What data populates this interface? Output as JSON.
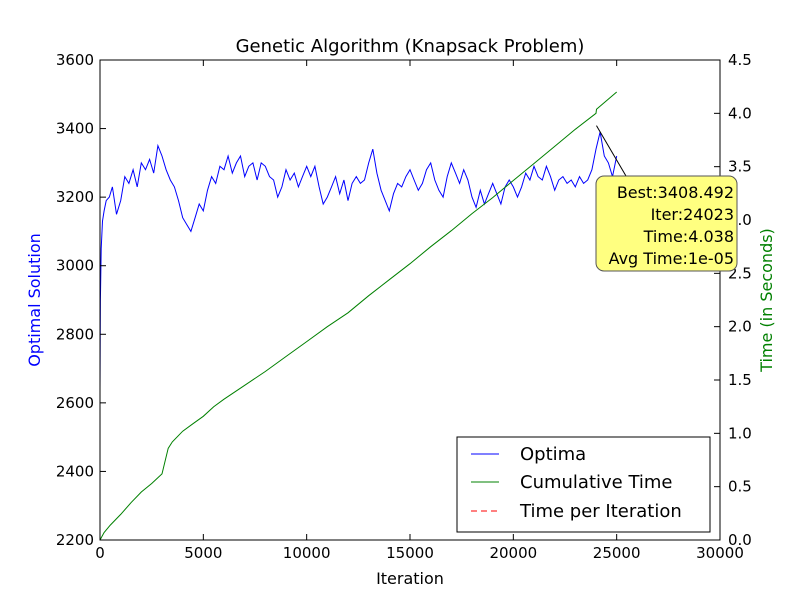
{
  "chart_data": {
    "type": "line",
    "title": "Genetic Algorithm (Knapsack Problem)",
    "xlabel": "Iteration",
    "ylabel_left": "Optimal Solution",
    "ylabel_right": "Time (in Seconds)",
    "xlim": [
      0,
      30000
    ],
    "ylim_left": [
      2200,
      3600
    ],
    "ylim_right": [
      0.0,
      4.5
    ],
    "x_ticks": [
      "0",
      "5000",
      "10000",
      "15000",
      "20000",
      "25000",
      "30000"
    ],
    "y_left_ticks": [
      "2200",
      "2400",
      "2600",
      "2800",
      "3000",
      "3200",
      "3400",
      "3600"
    ],
    "y_right_ticks": [
      "0.0",
      "0.5",
      "1.0",
      "1.5",
      "2.0",
      "2.5",
      "3.0",
      "3.5",
      "4.0",
      "4.5"
    ],
    "grid": false,
    "legend_position": "bottom-right",
    "series": [
      {
        "name": "Optima",
        "axis": "left",
        "color": "#0000ff",
        "style": "solid",
        "x": [
          0,
          20,
          60,
          120,
          200,
          300,
          450,
          600,
          800,
          1000,
          1200,
          1400,
          1600,
          1800,
          2000,
          2200,
          2400,
          2600,
          2800,
          3000,
          3200,
          3400,
          3600,
          3800,
          4000,
          4200,
          4400,
          4600,
          4800,
          5000,
          5200,
          5400,
          5600,
          5800,
          6000,
          6200,
          6400,
          6600,
          6800,
          7000,
          7200,
          7400,
          7600,
          7800,
          8000,
          8200,
          8400,
          8600,
          8800,
          9000,
          9200,
          9400,
          9600,
          9800,
          10000,
          10200,
          10400,
          10600,
          10800,
          11000,
          11200,
          11400,
          11600,
          11800,
          12000,
          12200,
          12400,
          12600,
          12800,
          13000,
          13200,
          13400,
          13600,
          13800,
          14000,
          14200,
          14400,
          14600,
          14800,
          15000,
          15200,
          15400,
          15600,
          15800,
          16000,
          16200,
          16400,
          16600,
          16800,
          17000,
          17200,
          17400,
          17600,
          17800,
          18000,
          18200,
          18400,
          18600,
          18800,
          19000,
          19200,
          19400,
          19600,
          19800,
          20000,
          20200,
          20400,
          20600,
          20800,
          21000,
          21200,
          21400,
          21600,
          21800,
          22000,
          22200,
          22400,
          22600,
          22800,
          23000,
          23200,
          23400,
          23600,
          23800,
          24000,
          24200,
          24400,
          24600,
          24800,
          25000
        ],
        "y": [
          2640,
          2900,
          3050,
          3130,
          3160,
          3190,
          3200,
          3230,
          3150,
          3190,
          3260,
          3240,
          3280,
          3230,
          3300,
          3280,
          3310,
          3270,
          3350,
          3320,
          3280,
          3250,
          3230,
          3190,
          3140,
          3120,
          3100,
          3140,
          3180,
          3160,
          3220,
          3260,
          3240,
          3290,
          3280,
          3320,
          3270,
          3300,
          3320,
          3260,
          3290,
          3300,
          3250,
          3300,
          3290,
          3260,
          3250,
          3200,
          3230,
          3280,
          3250,
          3270,
          3230,
          3260,
          3290,
          3260,
          3290,
          3230,
          3180,
          3200,
          3230,
          3260,
          3210,
          3250,
          3190,
          3240,
          3260,
          3240,
          3250,
          3300,
          3340,
          3270,
          3220,
          3190,
          3160,
          3210,
          3240,
          3230,
          3260,
          3280,
          3250,
          3220,
          3240,
          3280,
          3300,
          3250,
          3220,
          3200,
          3260,
          3300,
          3270,
          3240,
          3280,
          3250,
          3200,
          3170,
          3220,
          3180,
          3210,
          3240,
          3210,
          3180,
          3230,
          3250,
          3230,
          3200,
          3230,
          3270,
          3250,
          3290,
          3260,
          3250,
          3290,
          3260,
          3220,
          3250,
          3260,
          3240,
          3250,
          3230,
          3260,
          3240,
          3250,
          3280,
          3340,
          3390,
          3320,
          3300,
          3260,
          3320
        ]
      },
      {
        "name": "Cumulative Time",
        "axis": "right",
        "color": "#008000",
        "style": "solid",
        "x": [
          0,
          200,
          500,
          1000,
          1500,
          2000,
          2500,
          3000,
          3300,
          3500,
          4000,
          4500,
          5000,
          5500,
          6000,
          7000,
          8000,
          9000,
          10000,
          11000,
          12000,
          13000,
          14000,
          15000,
          16000,
          17000,
          18000,
          19000,
          20000,
          21000,
          22000,
          23000,
          24000,
          24023,
          25000
        ],
        "y": [
          0.0,
          0.07,
          0.14,
          0.24,
          0.35,
          0.45,
          0.53,
          0.62,
          0.86,
          0.92,
          1.02,
          1.09,
          1.16,
          1.25,
          1.32,
          1.45,
          1.58,
          1.72,
          1.86,
          2.0,
          2.13,
          2.29,
          2.44,
          2.59,
          2.75,
          2.9,
          3.06,
          3.21,
          3.37,
          3.53,
          3.69,
          3.85,
          4.0,
          4.038,
          4.2
        ]
      },
      {
        "name": "Time per Iteration",
        "axis": "right",
        "color": "#ff0000",
        "style": "dashed",
        "x": [
          0,
          25000
        ],
        "y": [
          1e-05,
          1e-05
        ]
      }
    ],
    "annotation": {
      "lines": [
        "Best:3408.492",
        "Iter:24023",
        "Time:4.038",
        "Avg Time:1e-05"
      ],
      "point_x": 24023,
      "point_y": 3408.492,
      "background": "#ffff80"
    },
    "colors": {
      "left_axis_label": "#0000ff",
      "right_axis_label": "#008000",
      "axes": "#000000"
    }
  }
}
